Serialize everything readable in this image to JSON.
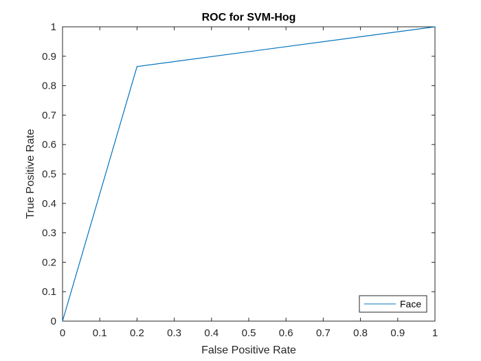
{
  "chart_data": {
    "type": "line",
    "title": "ROC for SVM-Hog",
    "xlabel": "False Positive Rate",
    "ylabel": "True Positive Rate",
    "xlim": [
      0,
      1
    ],
    "ylim": [
      0,
      1
    ],
    "xticks": [
      "0",
      "0.1",
      "0.2",
      "0.3",
      "0.4",
      "0.5",
      "0.6",
      "0.7",
      "0.8",
      "0.9",
      "1"
    ],
    "yticks": [
      "0",
      "0.1",
      "0.2",
      "0.3",
      "0.4",
      "0.5",
      "0.6",
      "0.7",
      "0.8",
      "0.9",
      "1"
    ],
    "grid": false,
    "legend_position": "bottom-right",
    "series": [
      {
        "name": "Face",
        "color": "#0072BD",
        "x": [
          0,
          0.2,
          1
        ],
        "y": [
          0,
          0.865,
          1
        ]
      }
    ]
  }
}
